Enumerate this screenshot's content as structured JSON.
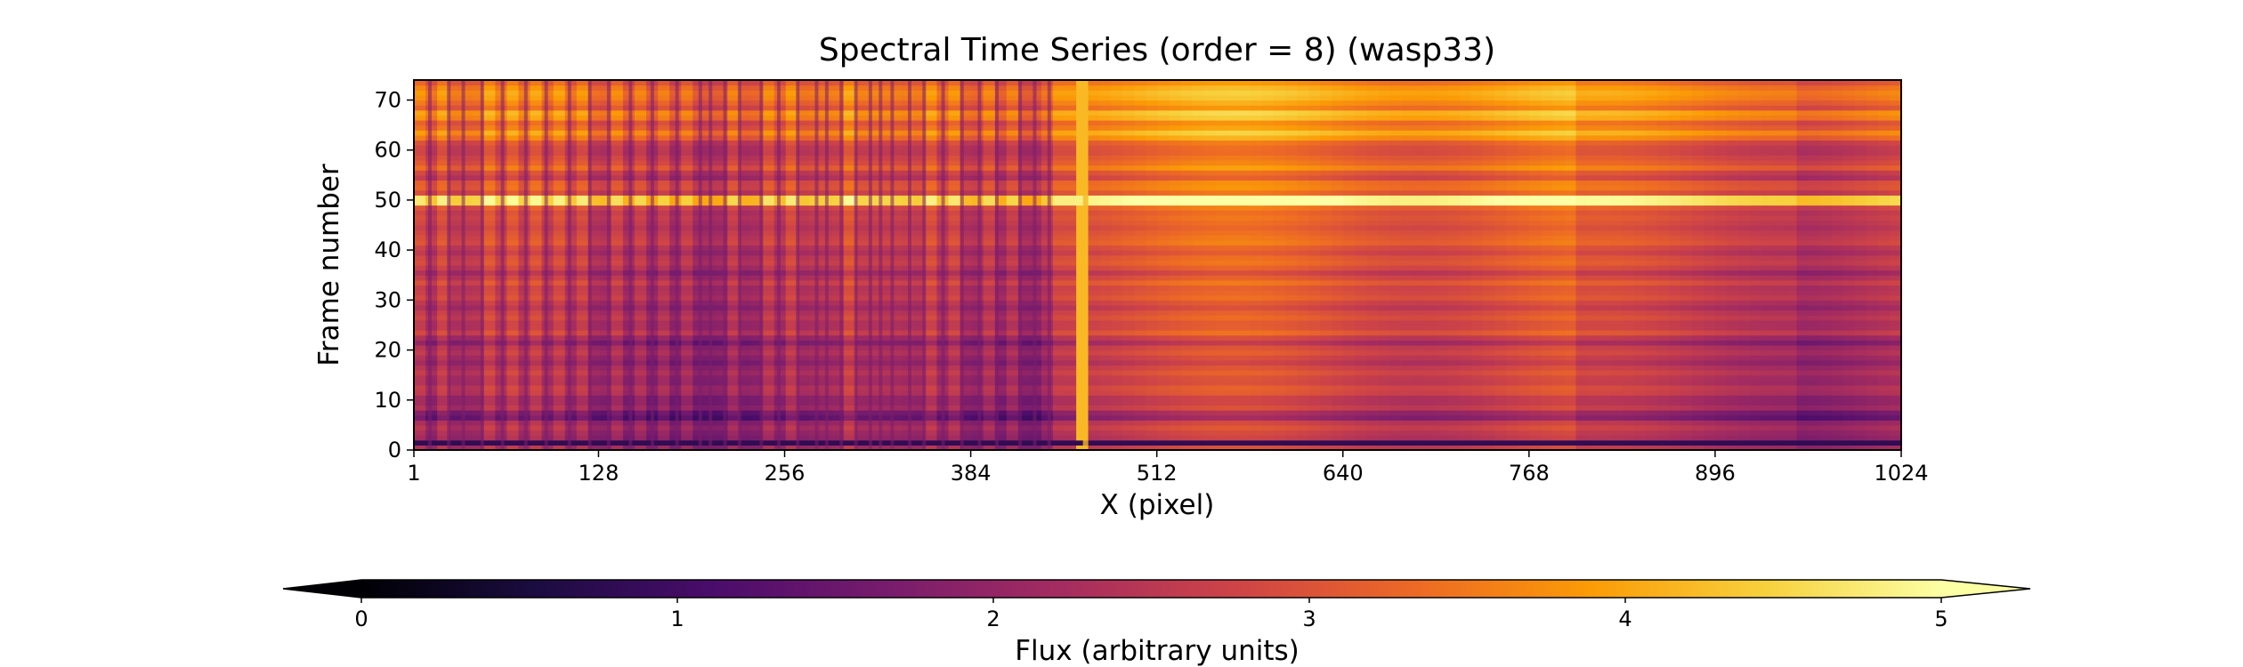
{
  "chart_data": {
    "type": "heatmap",
    "title": "Spectral Time Series (order = 8) (wasp33)",
    "xlabel": "X (pixel)",
    "ylabel": "Frame number",
    "xlim": [
      1,
      1024
    ],
    "ylim": [
      0,
      74
    ],
    "x_ticks": [
      1,
      128,
      256,
      384,
      512,
      640,
      768,
      896,
      1024
    ],
    "y_ticks": [
      0,
      10,
      20,
      30,
      40,
      50,
      60,
      70
    ],
    "colorbar": {
      "label": "Flux (arbitrary units)",
      "colormap": "inferno",
      "range": [
        0,
        5
      ],
      "extend": "both",
      "ticks": [
        0,
        1,
        2,
        3,
        4,
        5
      ]
    },
    "colormap_stops": [
      "#000004",
      "#1b0c41",
      "#4a0c6b",
      "#781c6d",
      "#a52c60",
      "#cf4446",
      "#ed6925",
      "#fb9b06",
      "#f7d13d",
      "#fcffa4"
    ],
    "features": {
      "dark_absorption_columns_x": [
        12,
        25,
        35,
        48,
        62,
        78,
        92,
        108,
        122,
        135,
        150,
        165,
        182,
        198,
        205,
        215,
        225,
        240,
        252,
        265,
        278,
        285,
        295,
        305,
        315,
        322,
        330,
        342,
        352,
        365,
        378,
        390,
        402,
        418,
        428,
        438
      ],
      "bright_emission_column_x": 463,
      "bright_row_frame": 50,
      "dark_row_frame": 1.5,
      "brighter_frames": [
        63,
        67,
        70,
        72
      ],
      "darker_frames": [
        7,
        22,
        35,
        45,
        55,
        60
      ]
    },
    "flux_profile": {
      "frames_lower_half_level": 2.2,
      "frames_upper_half_level": 3.4,
      "bright_row_level": 4.7,
      "dark_row_level": 0.8,
      "emission_column_level": 4.2,
      "absorption_column_depth": 0.45
    }
  }
}
